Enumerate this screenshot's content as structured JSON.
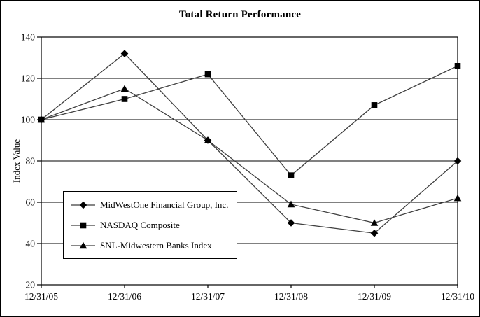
{
  "chart_data": {
    "type": "line",
    "title": "Total Return Performance",
    "ylabel": "Index Value",
    "xlabel": "",
    "categories": [
      "12/31/05",
      "12/31/06",
      "12/31/07",
      "12/31/08",
      "12/31/09",
      "12/31/10"
    ],
    "series": [
      {
        "name": "MidWestOne Financial Group, Inc.",
        "marker": "diamond",
        "values": [
          100,
          132,
          90,
          50,
          45,
          80
        ]
      },
      {
        "name": "NASDAQ Composite",
        "marker": "square",
        "values": [
          100,
          110,
          122,
          73,
          107,
          126
        ]
      },
      {
        "name": "SNL-Midwestern Banks Index",
        "marker": "triangle",
        "values": [
          100,
          115,
          90,
          59,
          50,
          62
        ]
      }
    ],
    "ylim": [
      20,
      140
    ],
    "yticks": [
      20,
      40,
      60,
      80,
      100,
      120,
      140
    ],
    "grid": true,
    "legend_position": "inside-bottom-left",
    "colors": {
      "line": "#3f3f3f",
      "marker": "#000000",
      "axis": "#000000",
      "background": "#ffffff"
    }
  }
}
